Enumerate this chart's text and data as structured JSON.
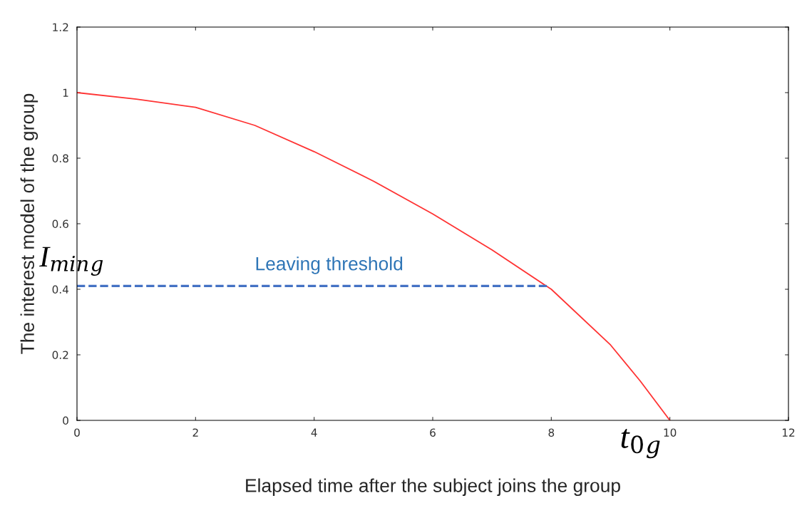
{
  "chart_data": {
    "type": "line",
    "xlabel": "Elapsed time after the subject joins the group",
    "ylabel": "The interest model of the group",
    "series": [
      {
        "type": "line",
        "color": "#ff3333",
        "line_style": "solid",
        "x": [
          0,
          1,
          2,
          3,
          4,
          5,
          6,
          7,
          8,
          9,
          9.5,
          10
        ],
        "values": [
          1,
          0.98,
          0.955,
          0.9,
          0.82,
          0.73,
          0.63,
          0.52,
          0.4,
          0.23,
          0.12,
          0
        ]
      },
      {
        "type": "line",
        "color": "#4472c4",
        "line_style": "dashed",
        "x": [
          0,
          7.95
        ],
        "values": [
          0.41,
          0.41
        ]
      }
    ],
    "annotations": [
      {
        "text": "Leaving threshold",
        "x": 3,
        "y": 0.41
      },
      {
        "text": "I$_{min}$$_{g}$",
        "x": 0,
        "y": 0.41
      },
      {
        "text": "t$_{0}$$_{g}$",
        "x": 10,
        "y": 0
      }
    ],
    "xlim": [
      0,
      12
    ],
    "ylim": [
      0,
      1.2
    ],
    "xticks": [
      0,
      2,
      4,
      6,
      8,
      10,
      12
    ],
    "yticks": [
      0,
      0.2,
      0.4,
      0.6,
      0.8,
      1,
      1.2
    ],
    "grid": false,
    "legend": false,
    "marker": "none"
  }
}
